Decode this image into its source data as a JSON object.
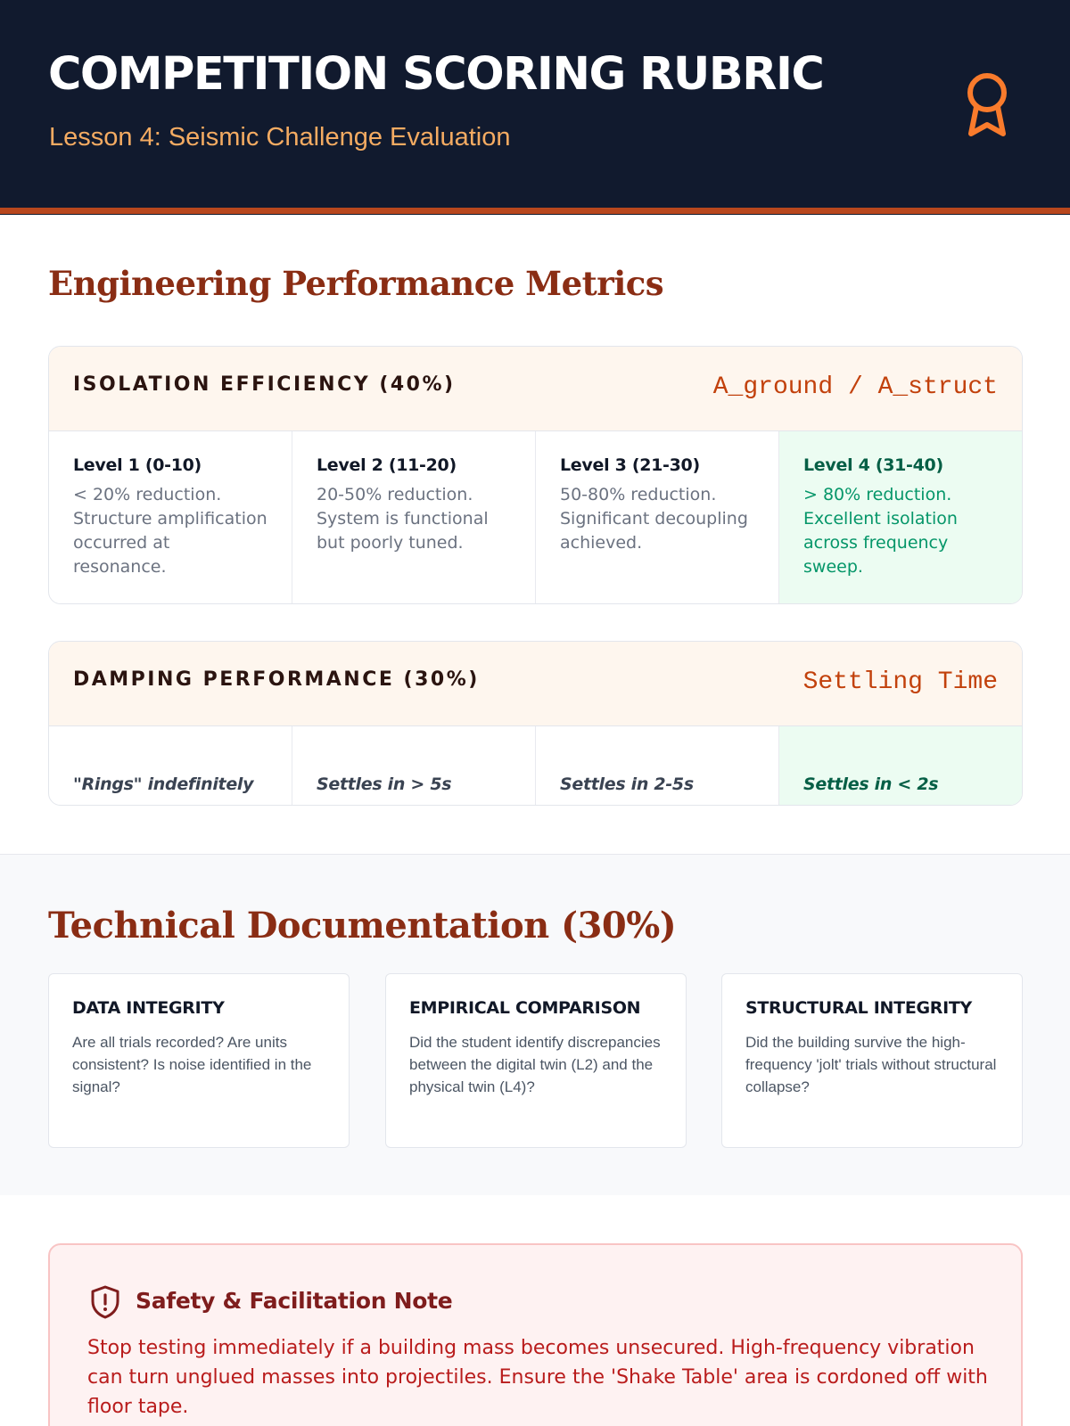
{
  "header": {
    "title": "COMPETITION SCORING RUBRIC",
    "subtitle": "Lesson 4: Seismic Challenge Evaluation",
    "icon": "award-ribbon-icon"
  },
  "performance": {
    "heading": "Engineering Performance Metrics",
    "isolation": {
      "title": "ISOLATION EFFICIENCY (40%)",
      "formula": "A_ground / A_struct",
      "levels": [
        {
          "title": "Level 1 (0-10)",
          "desc": "< 20% reduction. Structure amplification occurred at resonance."
        },
        {
          "title": "Level 2 (11-20)",
          "desc": "20-50% reduction. System is functional but poorly tuned."
        },
        {
          "title": "Level 3 (21-30)",
          "desc": "50-80% reduction. Significant decoupling achieved."
        },
        {
          "title": "Level 4 (31-40)",
          "desc": "> 80% reduction. Excellent isolation across frequency sweep."
        }
      ]
    },
    "damping": {
      "title": "DAMPING PERFORMANCE (30%)",
      "formula": "Settling Time",
      "levels": [
        "\"Rings\" indefinitely",
        "Settles in > 5s",
        "Settles in 2-5s",
        "Settles in < 2s"
      ]
    }
  },
  "documentation": {
    "heading": "Technical Documentation (30%)",
    "cards": [
      {
        "title": "DATA INTEGRITY",
        "desc": "Are all trials recorded? Are units consistent? Is noise identified in the signal?"
      },
      {
        "title": "EMPIRICAL COMPARISON",
        "desc": "Did the student identify discrepancies between the digital twin (L2) and the physical twin (L4)?"
      },
      {
        "title": "STRUCTURAL INTEGRITY",
        "desc": "Did the building survive the high-frequency 'jolt' trials without structural collapse?"
      }
    ]
  },
  "safety": {
    "icon": "shield-alert-icon",
    "title": "Safety & Facilitation Note",
    "text": "Stop testing immediately if a building mass becomes unsecured. High-frequency vibration can turn unglued masses into projectiles. Ensure the 'Shake Table' area is cordoned off with floor tape."
  },
  "colors": {
    "header_bg": "#111a2e",
    "accent": "#b8471d",
    "heading": "#8a2d14",
    "best_level_bg": "#ecfcf2",
    "safety_bg": "#fef2f2"
  }
}
